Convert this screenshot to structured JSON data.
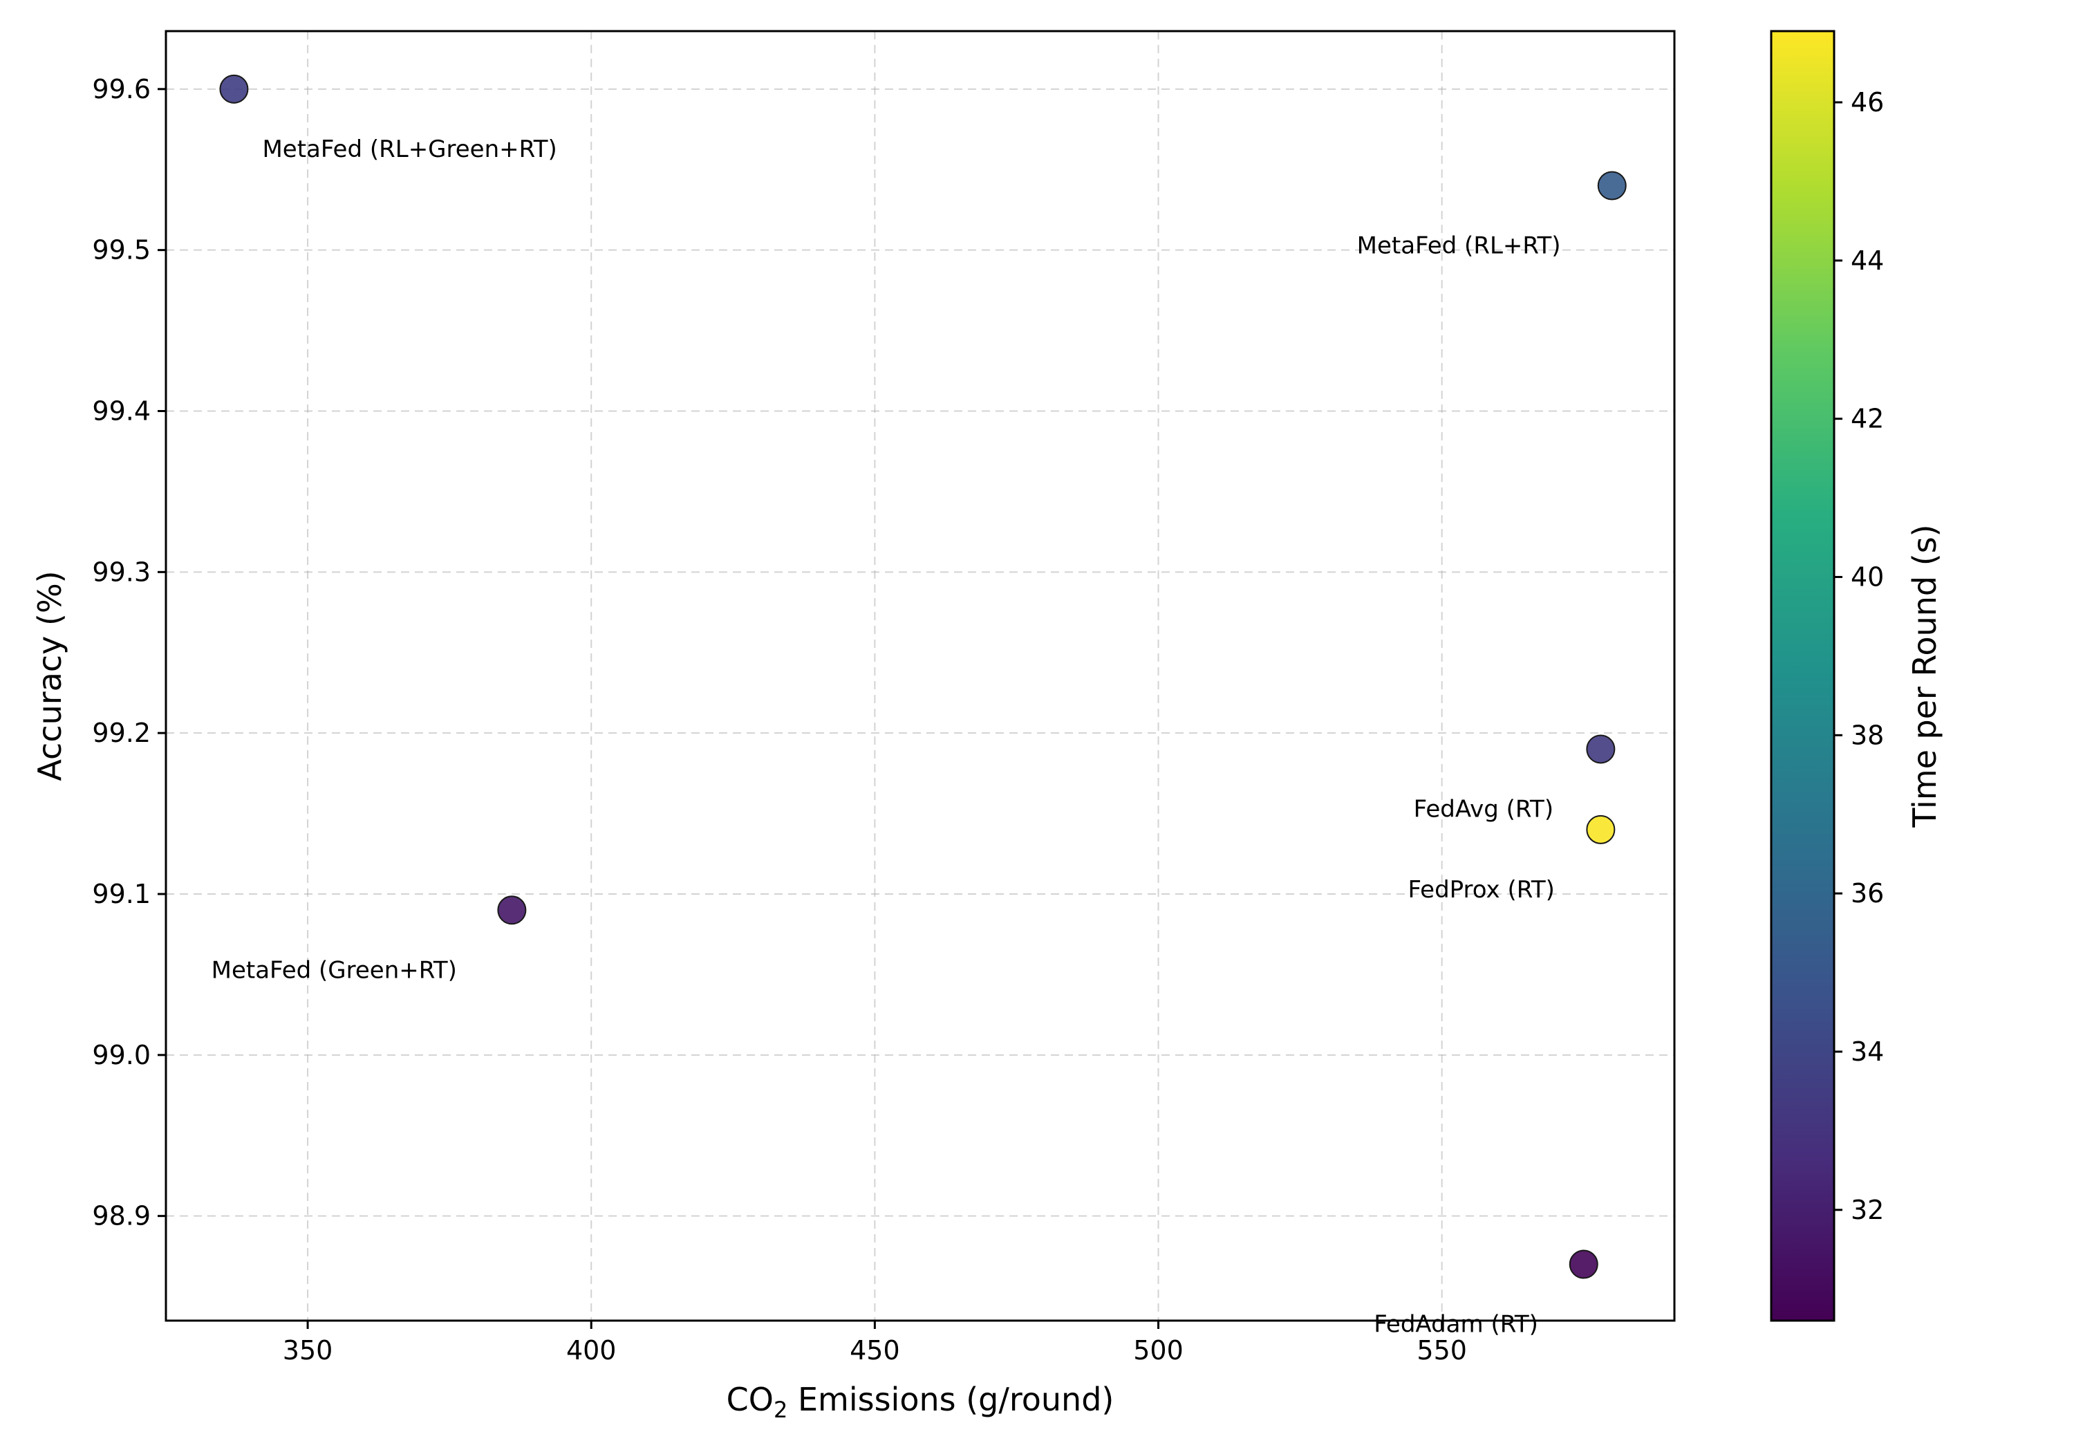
{
  "chart_data": {
    "type": "scatter",
    "title": "",
    "xlabel_main": "CO",
    "xlabel_sub": "2",
    "xlabel_rest": " Emissions (g/round)",
    "ylabel": "Accuracy (%)",
    "colorbar_label": "Time per Round (s)",
    "xlim": [
      325,
      591
    ],
    "ylim": [
      98.835,
      99.636
    ],
    "clim": [
      30.6,
      46.9
    ],
    "xticks": [
      350,
      400,
      450,
      500,
      550
    ],
    "xtick_labels": [
      "350",
      "400",
      "450",
      "500",
      "550"
    ],
    "yticks": [
      98.9,
      99.0,
      99.1,
      99.2,
      99.3,
      99.4,
      99.5,
      99.6
    ],
    "ytick_labels": [
      "98.9",
      "99.0",
      "99.1",
      "99.2",
      "99.3",
      "99.4",
      "99.5",
      "99.6"
    ],
    "cticks": [
      32,
      34,
      36,
      38,
      40,
      42,
      44,
      46
    ],
    "ctick_labels": [
      "32",
      "34",
      "36",
      "38",
      "40",
      "42",
      "44",
      "46"
    ],
    "grid": true,
    "colormap": "viridis",
    "points": [
      {
        "label": "MetaFed (RL+Green+RT)",
        "x": 337,
        "y": 99.6,
        "c": 33.6,
        "label_dx": 5,
        "label_dy": -0.037
      },
      {
        "label": "MetaFed (RL+RT)",
        "x": 580,
        "y": 99.54,
        "c": 35.4,
        "label_dx": -45,
        "label_dy": -0.037
      },
      {
        "label": "MetaFed (Green+RT)",
        "x": 386,
        "y": 99.09,
        "c": 31.7,
        "label_dx": -53,
        "label_dy": -0.037
      },
      {
        "label": "FedAvg (RT)",
        "x": 578,
        "y": 99.19,
        "c": 33.4,
        "label_dx": -33,
        "label_dy": -0.037
      },
      {
        "label": "FedProx (RT)",
        "x": 578,
        "y": 99.14,
        "c": 46.8,
        "label_dx": -34,
        "label_dy": -0.037
      },
      {
        "label": "FedAdam (RT)",
        "x": 575,
        "y": 98.87,
        "c": 30.8,
        "label_dx": -37,
        "label_dy": -0.037
      }
    ]
  }
}
